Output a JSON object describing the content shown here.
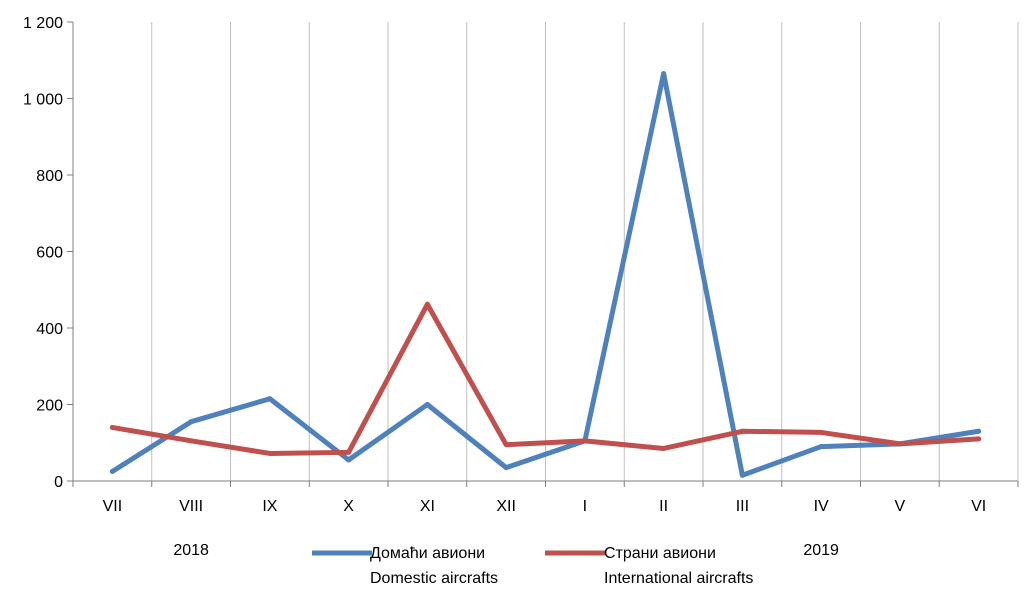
{
  "chart_data": {
    "type": "line",
    "categories": [
      "VII",
      "VIII",
      "IX",
      "X",
      "XI",
      "XII",
      "I",
      "II",
      "III",
      "IV",
      "V",
      "VI"
    ],
    "year_labels": [
      {
        "text": "2018",
        "category_index": 1
      },
      {
        "text": "2019",
        "category_index": 9
      }
    ],
    "y_ticks": [
      0,
      200,
      400,
      600,
      800,
      1000,
      1200
    ],
    "y_tick_labels": [
      "0",
      "200",
      "400",
      "600",
      "800",
      "1 000",
      "1 200"
    ],
    "ylim": [
      0,
      1200
    ],
    "grid": "vertical",
    "legend_position": "bottom",
    "series": [
      {
        "name_line1": "Домаћи авиони",
        "name_line2": "Domestic aircrafts",
        "color": "#4F81BD",
        "values": [
          25,
          155,
          215,
          55,
          200,
          35,
          105,
          1065,
          15,
          90,
          97,
          130
        ]
      },
      {
        "name_line1": "Страни авиони",
        "name_line2": "International aircrafts",
        "color": "#C0504D",
        "values": [
          140,
          105,
          72,
          75,
          462,
          95,
          105,
          85,
          130,
          127,
          97,
          110
        ]
      }
    ]
  }
}
